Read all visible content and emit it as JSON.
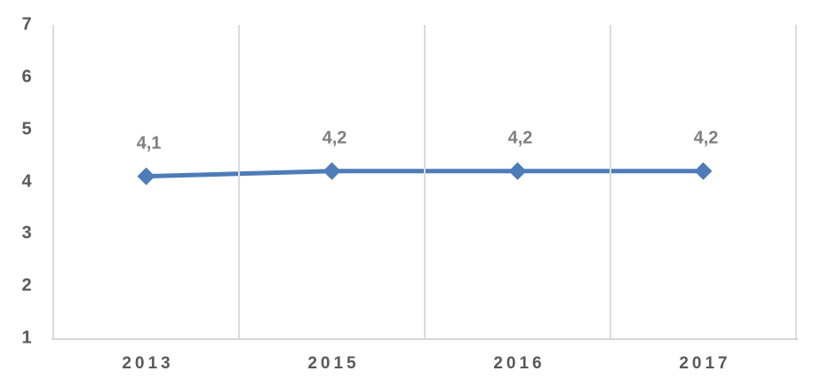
{
  "chart_data": {
    "type": "line",
    "title": "",
    "xlabel": "",
    "ylabel": "",
    "categories": [
      "2013",
      "2015",
      "2016",
      "2017"
    ],
    "series": [
      {
        "name": "series-1",
        "values": [
          4.1,
          4.2,
          4.2,
          4.2
        ],
        "point_labels": [
          "4,1",
          "4,2",
          "4,2",
          "4,2"
        ]
      }
    ],
    "y_ticks": [
      1,
      2,
      3,
      4,
      5,
      6,
      7
    ],
    "ylim": [
      1,
      7
    ],
    "grid": "vertical category boundary lines only",
    "legend_position": "none",
    "marker": "diamond",
    "decimal_separator": ",",
    "colors": {
      "line": "#4d7cb8",
      "marker": "#4d7cb8",
      "grid": "#dcdcdc",
      "axis_line": "#d6d6d6",
      "tick_text": "#595959",
      "data_label_text": "#7f7f7f",
      "background": "#ffffff"
    }
  }
}
